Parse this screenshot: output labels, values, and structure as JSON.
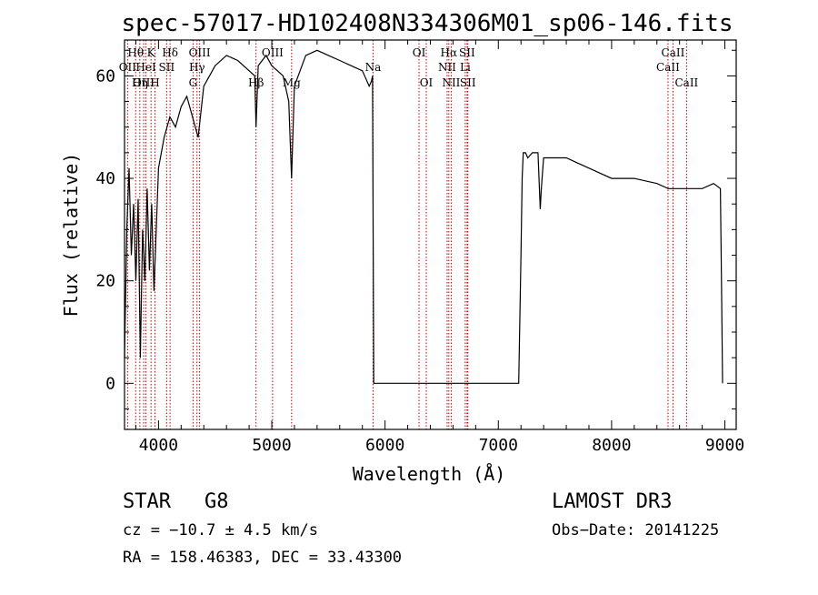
{
  "chart_data": {
    "type": "line",
    "title": "spec-57017-HD102408N334306M01_sp06-146.fits",
    "xlabel": "Wavelength (Å)",
    "ylabel": "Flux (relative)",
    "xlim": [
      3700,
      9100
    ],
    "ylim": [
      -9,
      67
    ],
    "x_ticks": [
      4000,
      5000,
      6000,
      7000,
      8000,
      9000
    ],
    "y_ticks": [
      0,
      20,
      40,
      60
    ],
    "x_tick_labels": [
      "4000",
      "5000",
      "6000",
      "7000",
      "8000",
      "9000"
    ],
    "y_tick_labels": [
      "0",
      "20",
      "40",
      "60"
    ],
    "series": [
      {
        "name": "flux",
        "x": [
          3700,
          3720,
          3740,
          3760,
          3780,
          3800,
          3820,
          3840,
          3860,
          3880,
          3900,
          3920,
          3940,
          3960,
          3980,
          4000,
          4050,
          4100,
          4150,
          4200,
          4250,
          4300,
          4350,
          4400,
          4450,
          4500,
          4600,
          4700,
          4800,
          4850,
          4861,
          4880,
          4950,
          5000,
          5100,
          5150,
          5175,
          5200,
          5300,
          5400,
          5500,
          5600,
          5700,
          5800,
          5860,
          5880,
          5890,
          5900,
          6000,
          6500,
          7000,
          7180,
          7200,
          7210,
          7220,
          7240,
          7260,
          7300,
          7350,
          7370,
          7380,
          7400,
          7500,
          7600,
          7700,
          7800,
          7900,
          8000,
          8200,
          8400,
          8500,
          8600,
          8700,
          8800,
          8900,
          8960,
          8970,
          8980
        ],
        "y": [
          5,
          30,
          42,
          25,
          35,
          20,
          36,
          5,
          30,
          20,
          38,
          22,
          35,
          18,
          30,
          42,
          48,
          52,
          50,
          54,
          56,
          52,
          48,
          58,
          60,
          62,
          64,
          63,
          61,
          60,
          50,
          62,
          64,
          62,
          60,
          55,
          40,
          58,
          64,
          65,
          64,
          63,
          62,
          61,
          58,
          59,
          60,
          0,
          0,
          0,
          0,
          0,
          25,
          40,
          45,
          45,
          44,
          45,
          45,
          34,
          38,
          44,
          44,
          44,
          43,
          42,
          41,
          40,
          40,
          39,
          38,
          38,
          38,
          38,
          39,
          38,
          20,
          0
        ]
      }
    ],
    "line_labels": [
      {
        "name": "Hθ",
        "wavelength": 3798,
        "row": 1
      },
      {
        "name": "OII",
        "wavelength": 3727,
        "row": 2
      },
      {
        "name": "Hη",
        "wavelength": 3835,
        "row": 3
      },
      {
        "name": "OIII",
        "wavelength": 3869,
        "row": 3
      },
      {
        "name": "HeI",
        "wavelength": 3889,
        "row": 2
      },
      {
        "name": "K",
        "wavelength": 3934,
        "row": 1
      },
      {
        "name": "SII",
        "wavelength": 4072,
        "row": 2
      },
      {
        "name": "H",
        "wavelength": 3969,
        "row": 3
      },
      {
        "name": "Hδ",
        "wavelength": 4102,
        "row": 1
      },
      {
        "name": "OIII",
        "wavelength": 4363,
        "row": 1
      },
      {
        "name": "Hγ",
        "wavelength": 4340,
        "row": 2
      },
      {
        "name": "G",
        "wavelength": 4305,
        "row": 3
      },
      {
        "name": "Hβ",
        "wavelength": 4861,
        "row": 3
      },
      {
        "name": "OIII",
        "wavelength": 5007,
        "row": 1
      },
      {
        "name": "Mg",
        "wavelength": 5175,
        "row": 3
      },
      {
        "name": "Na",
        "wavelength": 5894,
        "row": 2
      },
      {
        "name": "OI",
        "wavelength": 6300,
        "row": 1
      },
      {
        "name": "OI",
        "wavelength": 6364,
        "row": 3
      },
      {
        "name": "Hα",
        "wavelength": 6563,
        "row": 1
      },
      {
        "name": "SII",
        "wavelength": 6724,
        "row": 1
      },
      {
        "name": "NII",
        "wavelength": 6548,
        "row": 2
      },
      {
        "name": "Li",
        "wavelength": 6708,
        "row": 2
      },
      {
        "name": "NII",
        "wavelength": 6584,
        "row": 3
      },
      {
        "name": "SII",
        "wavelength": 6731,
        "row": 3
      },
      {
        "name": "CaII",
        "wavelength": 8498,
        "row": 2
      },
      {
        "name": "CaII",
        "wavelength": 8542,
        "row": 1
      },
      {
        "name": "CaII",
        "wavelength": 8662,
        "row": 3
      }
    ],
    "colors": {
      "spectrum": "#000000",
      "line_markers": "#c00000"
    }
  },
  "info": {
    "class_text": "STAR",
    "subclass": "G8",
    "survey": "LAMOST DR3",
    "cz": "cz = −10.7 ± 4.5 km/s",
    "obs_date": "Obs−Date: 20141225",
    "radec": "RA = 158.46383, DEC =  33.43300"
  }
}
